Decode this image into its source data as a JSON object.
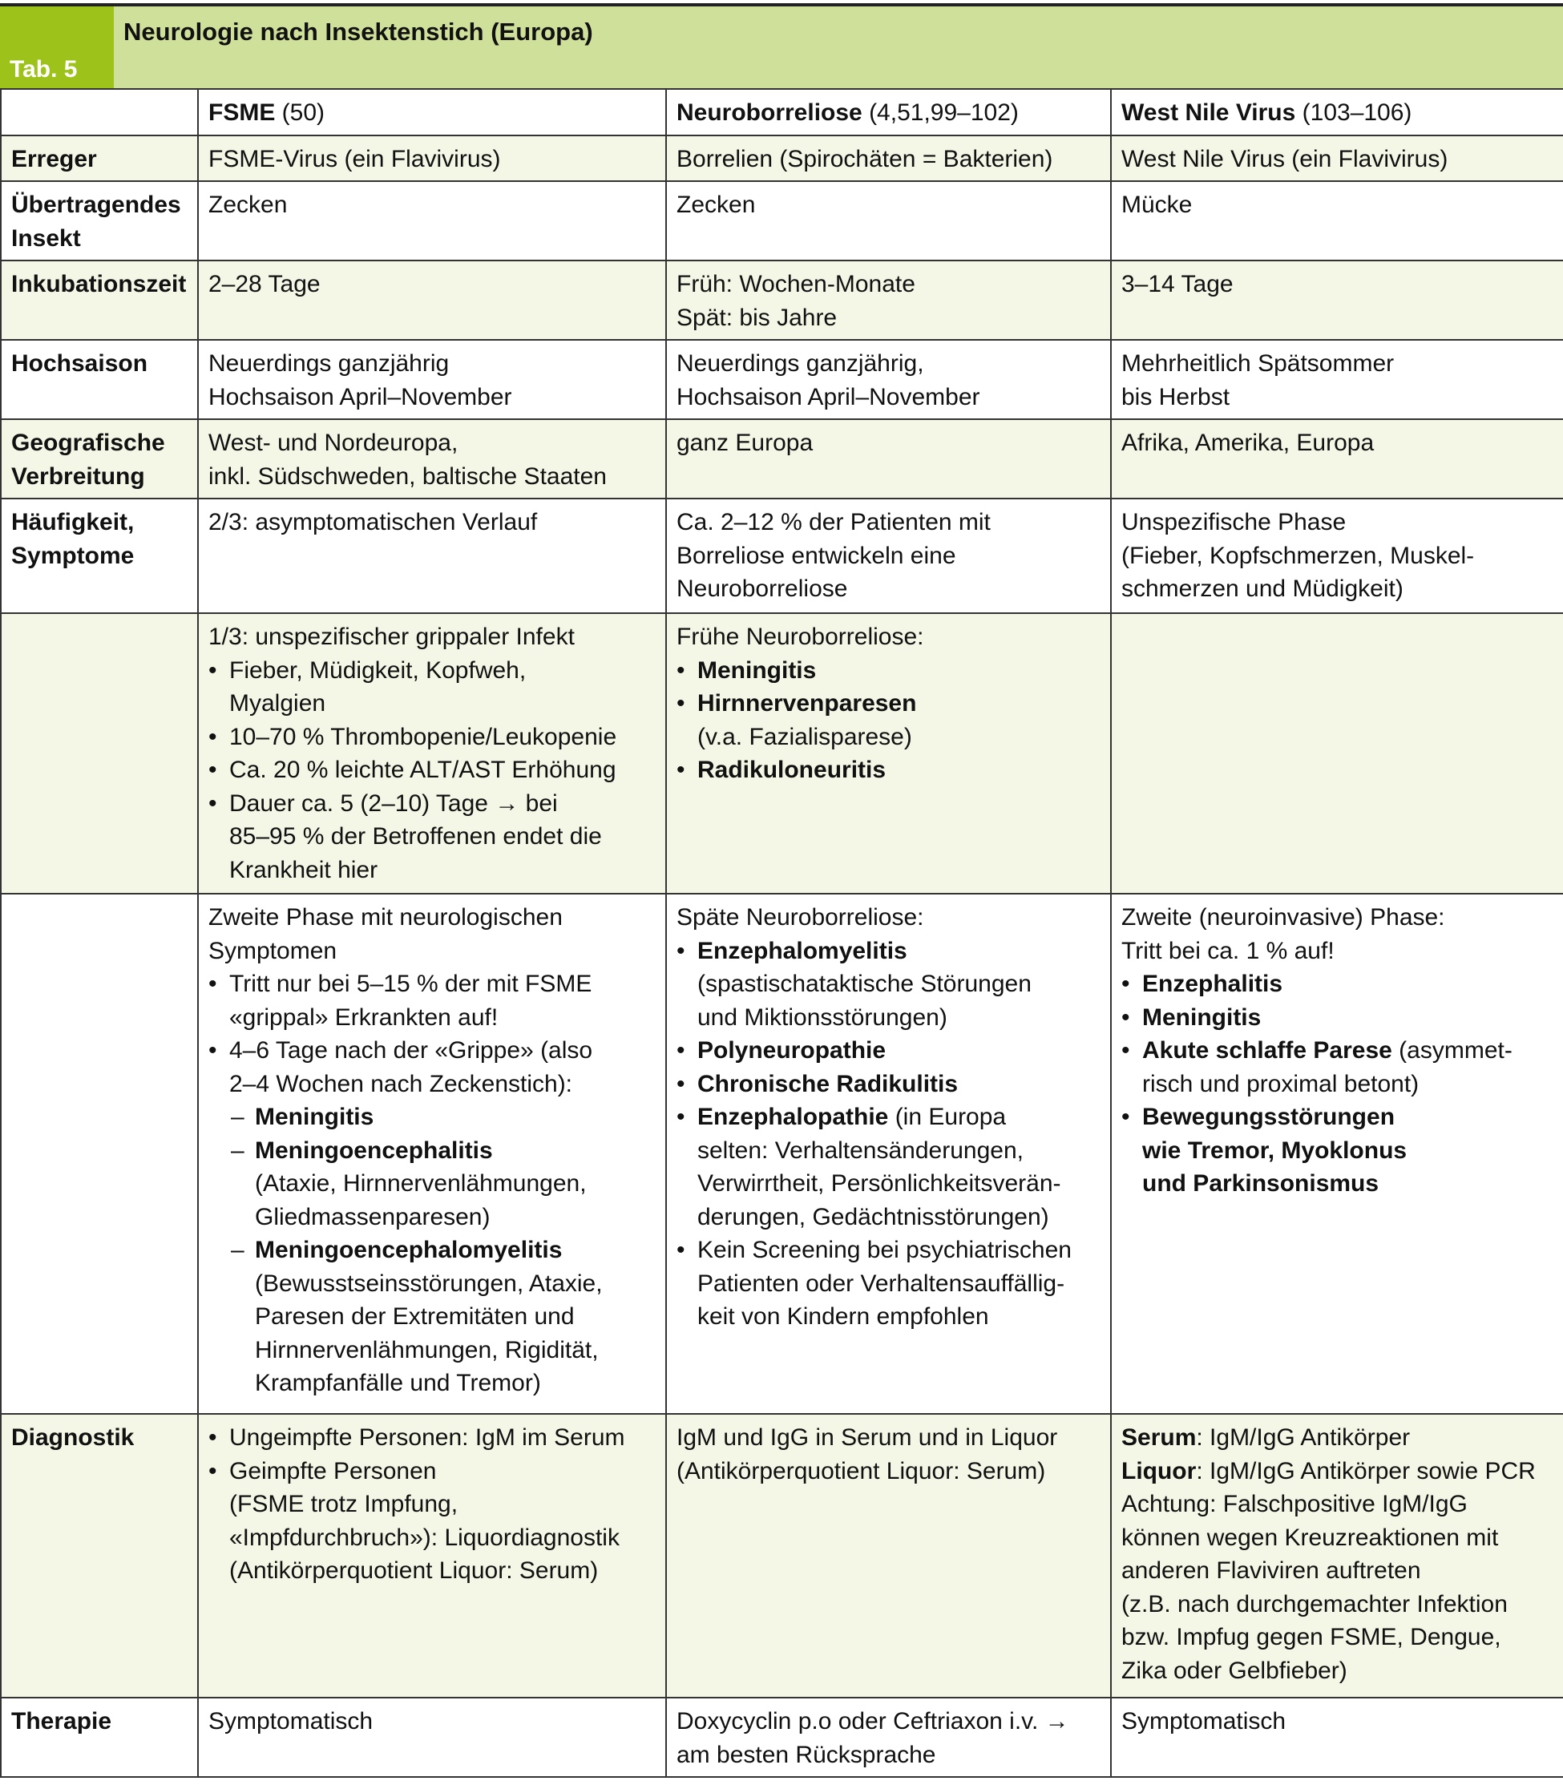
{
  "header": {
    "tab_label": "Tab. 5",
    "title": "Neurologie nach Insektenstich (Europa)"
  },
  "colors": {
    "title_bg": "#cfe09a",
    "tab_bg": "#9dc31a",
    "row_shade": "#f4f7e6"
  },
  "columns": [
    [
      {
        "t": "FSME",
        "b": true
      },
      {
        "t": " (50)"
      }
    ],
    [
      {
        "t": "Neuroborreliose",
        "b": true
      },
      {
        "t": " (4,51,99–102)"
      }
    ],
    [
      {
        "t": "West Nile Virus",
        "b": true
      },
      {
        "t": " (103–106)"
      }
    ]
  ],
  "rows": [
    {
      "label": "Erreger",
      "shade": true,
      "cells": [
        [
          {
            "k": "p",
            "parts": [
              {
                "t": "FSME-Virus (ein Flavivirus)"
              }
            ]
          }
        ],
        [
          {
            "k": "p",
            "parts": [
              {
                "t": "Borrelien (Spirochäten = Bakterien)"
              }
            ]
          }
        ],
        [
          {
            "k": "p",
            "parts": [
              {
                "t": "West Nile Virus (ein Flavivirus)"
              }
            ]
          }
        ]
      ]
    },
    {
      "label": "Übertragendes Insekt",
      "shade": false,
      "cells": [
        [
          {
            "k": "p",
            "parts": [
              {
                "t": "Zecken"
              }
            ]
          }
        ],
        [
          {
            "k": "p",
            "parts": [
              {
                "t": "Zecken"
              }
            ]
          }
        ],
        [
          {
            "k": "p",
            "parts": [
              {
                "t": "Mücke"
              }
            ]
          }
        ]
      ]
    },
    {
      "label": "Inkubationszeit",
      "shade": true,
      "cells": [
        [
          {
            "k": "p",
            "parts": [
              {
                "t": "2–28 Tage"
              }
            ]
          }
        ],
        [
          {
            "k": "p",
            "parts": [
              {
                "t": "Früh: Wochen-Monate\nSpät: bis Jahre"
              }
            ]
          }
        ],
        [
          {
            "k": "p",
            "parts": [
              {
                "t": "3–14 Tage"
              }
            ]
          }
        ]
      ]
    },
    {
      "label": "Hochsaison",
      "shade": false,
      "cells": [
        [
          {
            "k": "p",
            "parts": [
              {
                "t": "Neuerdings ganzjährig\nHochsaison April–November"
              }
            ]
          }
        ],
        [
          {
            "k": "p",
            "parts": [
              {
                "t": "Neuerdings ganzjährig,\nHochsaison April–November"
              }
            ]
          }
        ],
        [
          {
            "k": "p",
            "parts": [
              {
                "t": "Mehrheitlich Spätsommer\nbis Herbst"
              }
            ]
          }
        ]
      ]
    },
    {
      "label": "Geografische Verbreitung",
      "shade": true,
      "cells": [
        [
          {
            "k": "p",
            "parts": [
              {
                "t": "West- und Nordeuropa,\ninkl. Südschweden, baltische Staaten"
              }
            ]
          }
        ],
        [
          {
            "k": "p",
            "parts": [
              {
                "t": "ganz Europa"
              }
            ]
          }
        ],
        [
          {
            "k": "p",
            "parts": [
              {
                "t": "Afrika, Amerika, Europa"
              }
            ]
          }
        ]
      ]
    },
    {
      "label": "Häufigkeit, Symptome",
      "shade": false,
      "cells": [
        [
          {
            "k": "p",
            "parts": [
              {
                "t": "2/3: asymptomatischen Verlauf"
              }
            ]
          }
        ],
        [
          {
            "k": "p",
            "parts": [
              {
                "t": "Ca. 2–12 % der Patienten mit\nBorreliose entwickeln eine\nNeuroborreliose"
              }
            ]
          }
        ],
        [
          {
            "k": "p",
            "parts": [
              {
                "t": "Unspezifische Phase\n(Fieber, Kopfschmerzen, Muskel-\nschmerzen und Müdigkeit)"
              }
            ]
          }
        ]
      ]
    },
    {
      "label": "",
      "shade": true,
      "cells": [
        [
          {
            "k": "p",
            "parts": [
              {
                "t": "1/3: unspezifischer grippaler Infekt"
              }
            ]
          },
          {
            "k": "bullet",
            "parts": [
              {
                "t": "Fieber, Müdigkeit, Kopfweh,\nMyalgien"
              }
            ]
          },
          {
            "k": "bullet",
            "parts": [
              {
                "t": "10–70 % Thrombopenie/Leukopenie"
              }
            ]
          },
          {
            "k": "bullet",
            "parts": [
              {
                "t": "Ca. 20 % leichte ALT/AST Erhöhung"
              }
            ]
          },
          {
            "k": "bullet",
            "parts": [
              {
                "t": "Dauer ca. 5 (2–10) Tage → bei\n85–95 % der Betroffenen endet die\nKrankheit hier"
              }
            ]
          }
        ],
        [
          {
            "k": "p",
            "parts": [
              {
                "t": "Frühe Neuroborreliose:"
              }
            ]
          },
          {
            "k": "bullet",
            "parts": [
              {
                "t": "Meningitis",
                "b": true
              }
            ]
          },
          {
            "k": "bullet",
            "parts": [
              {
                "t": "Hirnnervenparesen",
                "b": true
              },
              {
                "t": "\n(v.a. Fazialisparese)"
              }
            ]
          },
          {
            "k": "bullet",
            "parts": [
              {
                "t": "Radikuloneuritis",
                "b": true
              }
            ]
          }
        ],
        []
      ]
    },
    {
      "label": "",
      "shade": false,
      "cells": [
        [
          {
            "k": "p",
            "parts": [
              {
                "t": "Zweite Phase mit neurologischen\nSymptomen"
              }
            ]
          },
          {
            "k": "bullet",
            "parts": [
              {
                "t": "Tritt nur bei 5–15 % der mit FSME\n«grippal» Erkrankten auf!"
              }
            ]
          },
          {
            "k": "bullet",
            "parts": [
              {
                "t": "4–6 Tage nach der «Grippe» (also\n2–4 Wochen nach Zeckenstich):"
              }
            ]
          },
          {
            "k": "dash",
            "parts": [
              {
                "t": "Meningitis",
                "b": true
              }
            ]
          },
          {
            "k": "dash",
            "parts": [
              {
                "t": "Meningoencephalitis",
                "b": true
              },
              {
                "t": "\n(Ataxie, Hirnnervenlähmungen,\nGliedmassenparesen)"
              }
            ]
          },
          {
            "k": "dash",
            "parts": [
              {
                "t": "Meningoencephalomyelitis",
                "b": true
              },
              {
                "t": "\n(Bewusstseinsstörungen, Ataxie,\nParesen der Extremitäten und\nHirnnervenlähmungen, Rigidität,\nKrampfanfälle und Tremor)"
              }
            ]
          }
        ],
        [
          {
            "k": "p",
            "parts": [
              {
                "t": "Späte Neuroborreliose:"
              }
            ]
          },
          {
            "k": "bullet",
            "parts": [
              {
                "t": "Enzephalomyelitis",
                "b": true
              },
              {
                "t": "\n(spastischataktische Störungen\nund Miktionsstörungen)"
              }
            ]
          },
          {
            "k": "bullet",
            "parts": [
              {
                "t": "Polyneuropathie",
                "b": true
              }
            ]
          },
          {
            "k": "bullet",
            "parts": [
              {
                "t": "Chronische Radikulitis",
                "b": true
              }
            ]
          },
          {
            "k": "bullet",
            "parts": [
              {
                "t": "Enzephalopathie",
                "b": true
              },
              {
                "t": " (in Europa\nselten: Verhaltensänderungen,\nVerwirrtheit, Persönlichkeitsverän-\nderungen, Gedächtnisstörungen)"
              }
            ]
          },
          {
            "k": "bullet",
            "parts": [
              {
                "t": "Kein Screening bei psychiatrischen\nPatienten oder Verhaltensauffällig-\nkeit von Kindern empfohlen"
              }
            ]
          }
        ],
        [
          {
            "k": "p",
            "parts": [
              {
                "t": "Zweite (neuroinvasive) Phase:\nTritt bei ca. 1 % auf!"
              }
            ]
          },
          {
            "k": "bullet",
            "parts": [
              {
                "t": "Enzephalitis",
                "b": true
              }
            ]
          },
          {
            "k": "bullet",
            "parts": [
              {
                "t": "Meningitis",
                "b": true
              }
            ]
          },
          {
            "k": "bullet",
            "parts": [
              {
                "t": "Akute schlaffe Parese",
                "b": true
              },
              {
                "t": " (asymmet-\nrisch und proximal betont)"
              }
            ]
          },
          {
            "k": "bullet",
            "parts": [
              {
                "t": "Bewegungsstörungen\nwie Tremor, Myoklonus\nund Parkinsonismus",
                "b": true
              }
            ]
          }
        ]
      ]
    },
    {
      "label": "Diagnostik",
      "shade": true,
      "cells": [
        [
          {
            "k": "bullet",
            "parts": [
              {
                "t": "Ungeimpfte Personen: IgM im Serum"
              }
            ]
          },
          {
            "k": "bullet",
            "parts": [
              {
                "t": "Geimpfte Personen\n(FSME trotz Impfung,\n«Impfdurchbruch»): Liquordiagnostik\n(Antikörperquotient Liquor: Serum)"
              }
            ]
          }
        ],
        [
          {
            "k": "p",
            "parts": [
              {
                "t": "IgM und IgG in Serum und in Liquor\n(Antikörperquotient Liquor: Serum)"
              }
            ]
          }
        ],
        [
          {
            "k": "p",
            "parts": [
              {
                "t": "Serum",
                "b": true
              },
              {
                "t": ": IgM/IgG Antikörper"
              }
            ]
          },
          {
            "k": "p",
            "parts": [
              {
                "t": "Liquor",
                "b": true
              },
              {
                "t": ": IgM/IgG Antikörper sowie PCR"
              }
            ]
          },
          {
            "k": "p",
            "parts": [
              {
                "t": "Achtung: Falschpositive IgM/IgG\nkönnen wegen Kreuzreaktionen mit\nanderen Flaviviren auftreten\n(z.B. nach durchgemachter Infektion\nbzw. Impfug gegen FSME, Dengue,\nZika oder Gelbfieber)"
              }
            ]
          }
        ]
      ]
    },
    {
      "label": "Therapie",
      "shade": false,
      "cells": [
        [
          {
            "k": "p",
            "parts": [
              {
                "t": "Symptomatisch"
              }
            ]
          }
        ],
        [
          {
            "k": "p",
            "parts": [
              {
                "t": "Doxycyclin p.o oder Ceftriaxon i.v. →\nam besten Rücksprache"
              }
            ]
          }
        ],
        [
          {
            "k": "p",
            "parts": [
              {
                "t": "Symptomatisch"
              }
            ]
          }
        ]
      ]
    }
  ]
}
